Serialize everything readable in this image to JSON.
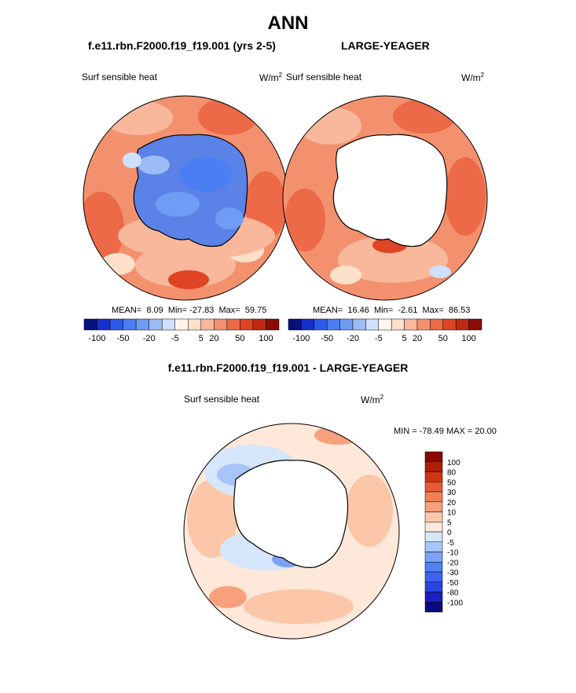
{
  "title": "ANN",
  "top_left_case": "f.e11.rbn.F2000.f19_f19.001 (yrs 2-5)",
  "top_right_case": "LARGE-YEAGER",
  "diff_title": "f.e11.rbn.F2000.f19_f19.001 - LARGE-YEAGER",
  "chart_data": [
    {
      "type": "heatmap",
      "name": "polar-map-model",
      "projection": "south-polar-stereographic",
      "field": "Surf sensible heat",
      "units_base": "W/m",
      "units_exp": "2",
      "stats": {
        "mean_label": "MEAN=",
        "mean": "8.09",
        "min_label": "Min=",
        "min": "-27.83",
        "max_label": "Max=",
        "max": "59.75"
      },
      "colorbar_levels": [
        "-100",
        "-50",
        "-20",
        "-5",
        "5",
        "20",
        "50",
        "100"
      ]
    },
    {
      "type": "heatmap",
      "name": "polar-map-obs",
      "projection": "south-polar-stereographic",
      "field": "Surf sensible heat",
      "units_base": "W/m",
      "units_exp": "2",
      "stats": {
        "mean_label": "MEAN=",
        "mean": "16.46",
        "min_label": "Min=",
        "min": "-2.61",
        "max_label": "Max=",
        "max": "86.53"
      },
      "colorbar_levels": [
        "-100",
        "-50",
        "-20",
        "-5",
        "5",
        "20",
        "50",
        "100"
      ]
    },
    {
      "type": "heatmap",
      "name": "polar-map-difference",
      "projection": "south-polar-stereographic",
      "field": "Surf sensible heat",
      "units_base": "W/m",
      "units_exp": "2",
      "minmax_text": "MIN = -78.49 MAX =  20.00",
      "colorbar_levels": [
        "-100",
        "-80",
        "-50",
        "-30",
        "-20",
        "-10",
        "-5",
        "0",
        "5",
        "10",
        "20",
        "30",
        "50",
        "80",
        "100"
      ]
    }
  ],
  "colors": {
    "abs_scale": [
      "#08107e",
      "#1530c8",
      "#2c5ae8",
      "#4a7ef2",
      "#6f9cf4",
      "#9cbcf6",
      "#cfe0fa",
      "#fdf5ee",
      "#fce0ca",
      "#f9b79b",
      "#f3916f",
      "#ec6a47",
      "#df4424",
      "#c02a12",
      "#8a0c04"
    ],
    "diff_scale": [
      "#0a0a80",
      "#1a1ec4",
      "#2a44e0",
      "#3c62ee",
      "#5080f2",
      "#7aa2f5",
      "#a8c4f8",
      "#d6e6fb",
      "#fde8da",
      "#fbc7a8",
      "#f8a07c",
      "#f27e56",
      "#e85a32",
      "#cf3614",
      "#b01e06",
      "#880802"
    ],
    "antarctica_model": "#5b82e6",
    "ocean_warm": "#f08a64"
  }
}
